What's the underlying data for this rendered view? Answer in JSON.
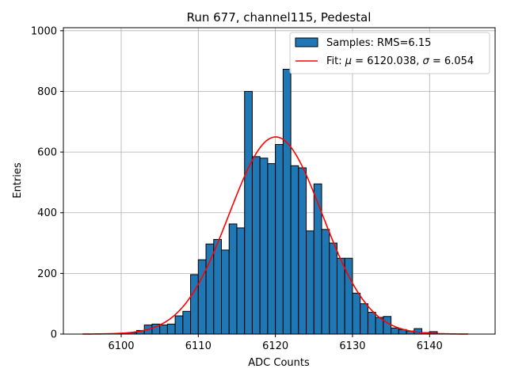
{
  "chart_data": {
    "type": "bar",
    "title": "Run 677, channel115, Pedestal",
    "xlabel": "ADC Counts",
    "ylabel": "Entries",
    "xlim": [
      6092.5,
      6148.5
    ],
    "ylim": [
      0,
      1010
    ],
    "xticks": [
      6100,
      6110,
      6120,
      6130,
      6140
    ],
    "yticks": [
      0,
      200,
      400,
      600,
      800,
      1000
    ],
    "grid": true,
    "legend_position": "top-right",
    "colors": {
      "bar": "#1f77b4",
      "bar_edge": "#000000",
      "fit": "#ff0000"
    },
    "histogram": {
      "name": "Samples: RMS=6.15",
      "bin_starts": [
        6100,
        6101,
        6102,
        6103,
        6104,
        6105,
        6106,
        6107,
        6108,
        6109,
        6110,
        6111,
        6112,
        6113,
        6114,
        6115,
        6116,
        6117,
        6118,
        6119,
        6120,
        6121,
        6122,
        6123,
        6124,
        6125,
        6126,
        6127,
        6128,
        6129,
        6130,
        6131,
        6132,
        6133,
        6134,
        6135,
        6136,
        6137,
        6138,
        6139,
        6140
      ],
      "bin_width": 1,
      "counts": [
        3,
        5,
        12,
        30,
        33,
        30,
        33,
        60,
        75,
        196,
        245,
        297,
        312,
        277,
        363,
        350,
        800,
        585,
        580,
        562,
        625,
        873,
        555,
        548,
        340,
        495,
        345,
        300,
        250,
        250,
        135,
        100,
        72,
        55,
        58,
        20,
        15,
        10,
        18,
        5,
        8
      ]
    },
    "fit": {
      "name": "Fit: μ = 6120.038, σ = 6.054",
      "mu": 6120.038,
      "sigma": 6.054,
      "amplitude": 650,
      "x_range": [
        6095,
        6145
      ]
    },
    "legend": {
      "entries": [
        {
          "label_plain": "Samples: RMS=6.15"
        },
        {
          "label_prefix": "Fit: ",
          "mu_symbol": "μ",
          "mu_text": " = 6120.038, ",
          "sigma_symbol": "σ",
          "sigma_text": " = 6.054"
        }
      ]
    }
  }
}
